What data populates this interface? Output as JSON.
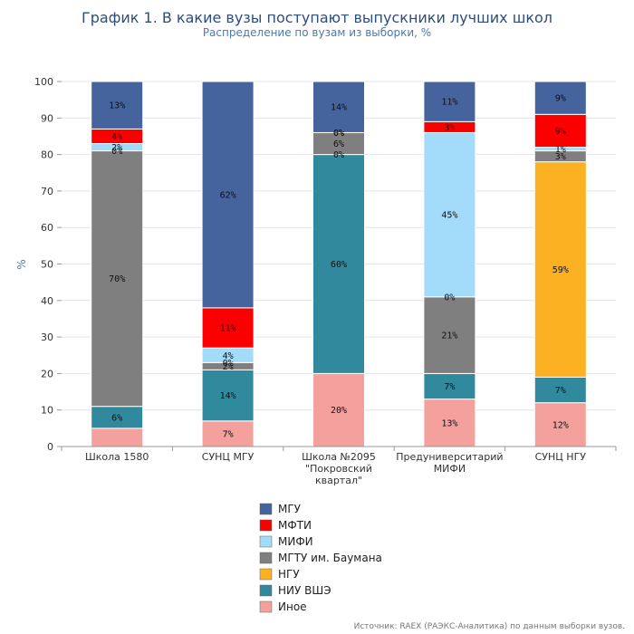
{
  "chart_data": {
    "type": "bar",
    "stacked": true,
    "title": "График 1. В какие вузы поступают выпускники лучших школ",
    "subtitle": "Распределение по вузам из выборки, %",
    "ylabel": "%",
    "xlabel": "",
    "ylim": [
      0,
      100
    ],
    "yticks": [
      0,
      10,
      20,
      30,
      40,
      50,
      60,
      70,
      80,
      90,
      100
    ],
    "legend_position": "bottom",
    "source": "Источник: RAEX (РАЭКС-Аналитика) по данным выборки вузов.",
    "categories": [
      [
        "Школа 1580"
      ],
      [
        "СУНЦ МГУ"
      ],
      [
        "Школа №2095",
        "\"Покровский",
        "квартал\""
      ],
      [
        "Предуниверситарий",
        "МИФИ"
      ],
      [
        "СУНЦ НГУ"
      ]
    ],
    "series": [
      {
        "name": "Иное",
        "color": "#f4a09c",
        "values": [
          5,
          7,
          20,
          13,
          12
        ],
        "labels": [
          "",
          "7%",
          "20%",
          "13%",
          "12%"
        ]
      },
      {
        "name": "НИУ ВШЭ",
        "color": "#31899e",
        "values": [
          6,
          14,
          60,
          7,
          7
        ],
        "labels": [
          "6%",
          "14%",
          "60%",
          "7%",
          "7%"
        ]
      },
      {
        "name": "НГУ",
        "color": "#fbb122",
        "values": [
          0,
          0,
          0,
          0,
          59
        ],
        "labels": [
          "",
          "",
          "",
          "",
          "59%"
        ]
      },
      {
        "name": "МГТУ им. Баумана",
        "color": "#7f7f7f",
        "values": [
          70,
          2,
          6,
          21,
          3
        ],
        "labels": [
          "70%",
          "2%",
          "6%",
          "21%",
          "3%"
        ]
      },
      {
        "name": "МИФИ",
        "color": "#a3dbfb",
        "values": [
          2,
          4,
          0,
          45,
          1
        ],
        "labels": [
          "2%",
          "4%",
          "0%",
          "45%",
          "1%"
        ]
      },
      {
        "name": "МФТИ",
        "color": "#fb0000",
        "values": [
          4,
          11,
          0,
          3,
          9
        ],
        "labels": [
          "4%",
          "11%",
          "0%",
          "3%",
          "9%"
        ]
      },
      {
        "name": "МГУ",
        "color": "#45639c",
        "values": [
          13,
          62,
          14,
          11,
          9
        ],
        "labels": [
          "13%",
          "62%",
          "14%",
          "11%",
          "9%"
        ]
      }
    ],
    "zero_labels": [
      {
        "series": "МГТУ им. Баумана",
        "category": 0,
        "text": "0%"
      },
      {
        "series": "МГТУ им. Баумана",
        "category": 3,
        "text": "0%"
      },
      {
        "series": "МГТУ им. Баумана",
        "category": 1,
        "text": "0%"
      },
      {
        "series": "НИУ ВШЭ",
        "category": 2,
        "text": "0%"
      }
    ],
    "legend_order": [
      "МГУ",
      "МФТИ",
      "МИФИ",
      "МГТУ им. Баумана",
      "НГУ",
      "НИУ ВШЭ",
      "Иное"
    ]
  }
}
